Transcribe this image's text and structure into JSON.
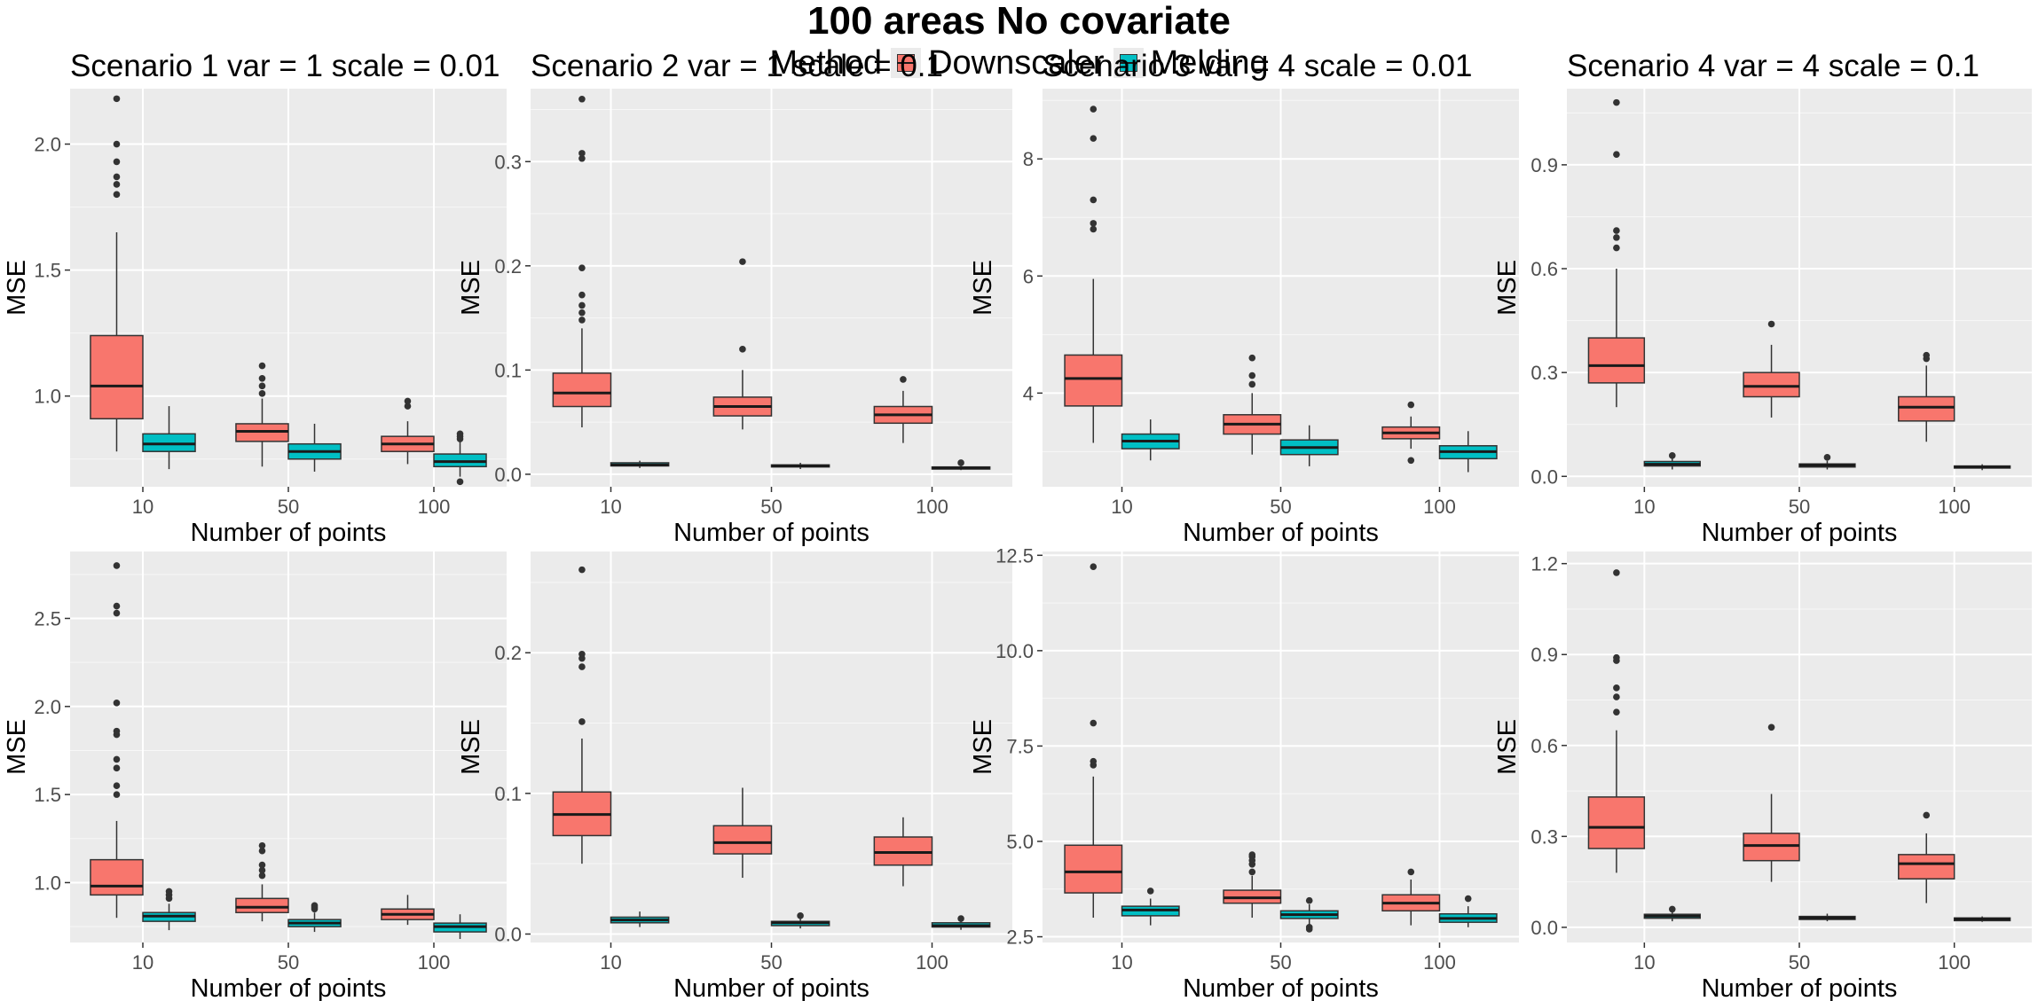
{
  "title": "100 areas No covariate",
  "legend": {
    "title": "Method",
    "items": [
      {
        "label": "Downscaler",
        "color": "#F8766D"
      },
      {
        "label": "Melding",
        "color": "#00BFC4"
      }
    ]
  },
  "chart_data": [
    {
      "type": "box",
      "title": "Scenario 1 var = 1 scale = 0.01",
      "xlabel": "Number of points",
      "ylabel": "MSE",
      "categories": [
        "10",
        "50",
        "100"
      ],
      "ylim": [
        0.64,
        2.22
      ],
      "yticks": [
        1.0,
        1.5,
        2.0
      ],
      "ytick_labels": [
        "1.0",
        "1.5",
        "2.0"
      ],
      "series": [
        {
          "name": "Downscaler",
          "boxes": [
            {
              "whisker_low": 0.78,
              "q1": 0.91,
              "median": 1.04,
              "q3": 1.24,
              "whisker_high": 1.65,
              "outliers": [
                1.8,
                1.84,
                1.87,
                1.93,
                2.0,
                2.18
              ]
            },
            {
              "whisker_low": 0.72,
              "q1": 0.82,
              "median": 0.86,
              "q3": 0.89,
              "whisker_high": 0.99,
              "outliers": [
                1.01,
                1.04,
                1.07,
                1.12
              ]
            },
            {
              "whisker_low": 0.73,
              "q1": 0.78,
              "median": 0.81,
              "q3": 0.84,
              "whisker_high": 0.9,
              "outliers": [
                0.96,
                0.98
              ]
            }
          ]
        },
        {
          "name": "Melding",
          "boxes": [
            {
              "whisker_low": 0.71,
              "q1": 0.78,
              "median": 0.81,
              "q3": 0.85,
              "whisker_high": 0.96,
              "outliers": []
            },
            {
              "whisker_low": 0.7,
              "q1": 0.75,
              "median": 0.78,
              "q3": 0.81,
              "whisker_high": 0.89,
              "outliers": []
            },
            {
              "whisker_low": 0.68,
              "q1": 0.72,
              "median": 0.74,
              "q3": 0.77,
              "whisker_high": 0.82,
              "outliers": [
                0.66,
                0.83,
                0.84,
                0.85
              ]
            }
          ]
        }
      ]
    },
    {
      "type": "box",
      "title": "Scenario 2 var = 1 scale = 0.1",
      "xlabel": "Number of points",
      "ylabel": "MSE",
      "categories": [
        "10",
        "50",
        "100"
      ],
      "ylim": [
        -0.012,
        0.37
      ],
      "yticks": [
        0.0,
        0.1,
        0.2,
        0.3
      ],
      "ytick_labels": [
        "0.0",
        "0.1",
        "0.2",
        "0.3"
      ],
      "series": [
        {
          "name": "Downscaler",
          "boxes": [
            {
              "whisker_low": 0.045,
              "q1": 0.065,
              "median": 0.078,
              "q3": 0.097,
              "whisker_high": 0.14,
              "outliers": [
                0.148,
                0.155,
                0.162,
                0.172,
                0.198,
                0.303,
                0.308,
                0.36
              ]
            },
            {
              "whisker_low": 0.043,
              "q1": 0.056,
              "median": 0.065,
              "q3": 0.074,
              "whisker_high": 0.1,
              "outliers": [
                0.12,
                0.204
              ]
            },
            {
              "whisker_low": 0.03,
              "q1": 0.049,
              "median": 0.057,
              "q3": 0.065,
              "whisker_high": 0.08,
              "outliers": [
                0.091
              ]
            }
          ]
        },
        {
          "name": "Melding",
          "boxes": [
            {
              "whisker_low": 0.006,
              "q1": 0.008,
              "median": 0.009,
              "q3": 0.011,
              "whisker_high": 0.013,
              "outliers": []
            },
            {
              "whisker_low": 0.005,
              "q1": 0.007,
              "median": 0.008,
              "q3": 0.009,
              "whisker_high": 0.011,
              "outliers": []
            },
            {
              "whisker_low": 0.004,
              "q1": 0.005,
              "median": 0.006,
              "q3": 0.007,
              "whisker_high": 0.009,
              "outliers": [
                0.011
              ]
            }
          ]
        }
      ]
    },
    {
      "type": "box",
      "title": "Scenario 3 var = 4 scale = 0.01",
      "xlabel": "Number of points",
      "ylabel": "MSE",
      "categories": [
        "10",
        "50",
        "100"
      ],
      "ylim": [
        2.4,
        9.2
      ],
      "yticks": [
        4,
        6,
        8
      ],
      "ytick_labels": [
        "4",
        "6",
        "8"
      ],
      "series": [
        {
          "name": "Downscaler",
          "boxes": [
            {
              "whisker_low": 3.15,
              "q1": 3.78,
              "median": 4.25,
              "q3": 4.65,
              "whisker_high": 5.95,
              "outliers": [
                6.8,
                6.9,
                7.3,
                8.35,
                8.85
              ]
            },
            {
              "whisker_low": 2.95,
              "q1": 3.3,
              "median": 3.47,
              "q3": 3.63,
              "whisker_high": 4.0,
              "outliers": [
                4.15,
                4.3,
                4.6
              ]
            },
            {
              "whisker_low": 3.05,
              "q1": 3.22,
              "median": 3.32,
              "q3": 3.42,
              "whisker_high": 3.6,
              "outliers": [
                2.85,
                3.8
              ]
            }
          ]
        },
        {
          "name": "Melding",
          "boxes": [
            {
              "whisker_low": 2.85,
              "q1": 3.05,
              "median": 3.18,
              "q3": 3.3,
              "whisker_high": 3.55,
              "outliers": []
            },
            {
              "whisker_low": 2.75,
              "q1": 2.95,
              "median": 3.07,
              "q3": 3.2,
              "whisker_high": 3.45,
              "outliers": []
            },
            {
              "whisker_low": 2.65,
              "q1": 2.88,
              "median": 3.0,
              "q3": 3.1,
              "whisker_high": 3.35,
              "outliers": []
            }
          ]
        }
      ]
    },
    {
      "type": "box",
      "title": "Scenario 4 var = 4 scale = 0.1",
      "xlabel": "Number of points",
      "ylabel": "MSE",
      "categories": [
        "10",
        "50",
        "100"
      ],
      "ylim": [
        -0.03,
        1.12
      ],
      "yticks": [
        0.0,
        0.3,
        0.6,
        0.9
      ],
      "ytick_labels": [
        "0.0",
        "0.3",
        "0.6",
        "0.9"
      ],
      "series": [
        {
          "name": "Downscaler",
          "boxes": [
            {
              "whisker_low": 0.2,
              "q1": 0.27,
              "median": 0.32,
              "q3": 0.4,
              "whisker_high": 0.6,
              "outliers": [
                0.66,
                0.69,
                0.71,
                0.93,
                1.08
              ]
            },
            {
              "whisker_low": 0.17,
              "q1": 0.23,
              "median": 0.26,
              "q3": 0.3,
              "whisker_high": 0.38,
              "outliers": [
                0.44
              ]
            },
            {
              "whisker_low": 0.1,
              "q1": 0.16,
              "median": 0.2,
              "q3": 0.23,
              "whisker_high": 0.32,
              "outliers": [
                0.34,
                0.35
              ]
            }
          ]
        },
        {
          "name": "Melding",
          "boxes": [
            {
              "whisker_low": 0.02,
              "q1": 0.03,
              "median": 0.035,
              "q3": 0.043,
              "whisker_high": 0.055,
              "outliers": [
                0.06
              ]
            },
            {
              "whisker_low": 0.02,
              "q1": 0.027,
              "median": 0.032,
              "q3": 0.036,
              "whisker_high": 0.045,
              "outliers": [
                0.055
              ]
            },
            {
              "whisker_low": 0.018,
              "q1": 0.024,
              "median": 0.027,
              "q3": 0.03,
              "whisker_high": 0.035,
              "outliers": []
            }
          ]
        }
      ]
    },
    {
      "type": "box",
      "title": "",
      "xlabel": "Number of points",
      "ylabel": "MSE",
      "categories": [
        "10",
        "50",
        "100"
      ],
      "ylim": [
        0.66,
        2.88
      ],
      "yticks": [
        1.0,
        1.5,
        2.0,
        2.5
      ],
      "ytick_labels": [
        "1.0",
        "1.5",
        "2.0",
        "2.5"
      ],
      "series": [
        {
          "name": "Downscaler",
          "boxes": [
            {
              "whisker_low": 0.8,
              "q1": 0.93,
              "median": 0.98,
              "q3": 1.13,
              "whisker_high": 1.35,
              "outliers": [
                1.5,
                1.55,
                1.65,
                1.7,
                1.84,
                1.86,
                2.02,
                2.53,
                2.57,
                2.8
              ]
            },
            {
              "whisker_low": 0.78,
              "q1": 0.83,
              "median": 0.86,
              "q3": 0.91,
              "whisker_high": 0.99,
              "outliers": [
                1.04,
                1.07,
                1.1,
                1.18,
                1.21
              ]
            },
            {
              "whisker_low": 0.76,
              "q1": 0.79,
              "median": 0.82,
              "q3": 0.85,
              "whisker_high": 0.93,
              "outliers": []
            }
          ]
        },
        {
          "name": "Melding",
          "boxes": [
            {
              "whisker_low": 0.73,
              "q1": 0.78,
              "median": 0.81,
              "q3": 0.83,
              "whisker_high": 0.88,
              "outliers": [
                0.91,
                0.93,
                0.95
              ]
            },
            {
              "whisker_low": 0.72,
              "q1": 0.75,
              "median": 0.77,
              "q3": 0.79,
              "whisker_high": 0.83,
              "outliers": [
                0.85,
                0.86,
                0.87
              ]
            },
            {
              "whisker_low": 0.68,
              "q1": 0.72,
              "median": 0.75,
              "q3": 0.77,
              "whisker_high": 0.82,
              "outliers": []
            }
          ]
        }
      ]
    },
    {
      "type": "box",
      "title": "",
      "xlabel": "Number of points",
      "ylabel": "MSE",
      "categories": [
        "10",
        "50",
        "100"
      ],
      "ylim": [
        -0.006,
        0.272
      ],
      "yticks": [
        0.0,
        0.1,
        0.2
      ],
      "ytick_labels": [
        "0.0",
        "0.1",
        "0.2"
      ],
      "series": [
        {
          "name": "Downscaler",
          "boxes": [
            {
              "whisker_low": 0.05,
              "q1": 0.07,
              "median": 0.085,
              "q3": 0.101,
              "whisker_high": 0.139,
              "outliers": [
                0.151,
                0.19,
                0.196,
                0.199,
                0.259
              ]
            },
            {
              "whisker_low": 0.04,
              "q1": 0.057,
              "median": 0.065,
              "q3": 0.077,
              "whisker_high": 0.104,
              "outliers": []
            },
            {
              "whisker_low": 0.034,
              "q1": 0.049,
              "median": 0.058,
              "q3": 0.069,
              "whisker_high": 0.083,
              "outliers": []
            }
          ]
        },
        {
          "name": "Melding",
          "boxes": [
            {
              "whisker_low": 0.005,
              "q1": 0.008,
              "median": 0.01,
              "q3": 0.012,
              "whisker_high": 0.016,
              "outliers": []
            },
            {
              "whisker_low": 0.004,
              "q1": 0.006,
              "median": 0.008,
              "q3": 0.009,
              "whisker_high": 0.011,
              "outliers": [
                0.013
              ]
            },
            {
              "whisker_low": 0.003,
              "q1": 0.005,
              "median": 0.006,
              "q3": 0.008,
              "whisker_high": 0.009,
              "outliers": [
                0.011
              ]
            }
          ]
        }
      ]
    },
    {
      "type": "box",
      "title": "",
      "xlabel": "Number of points",
      "ylabel": "MSE",
      "categories": [
        "10",
        "50",
        "100"
      ],
      "ylim": [
        2.35,
        12.6
      ],
      "yticks": [
        2.5,
        5.0,
        7.5,
        10.0,
        12.5
      ],
      "ytick_labels": [
        "2.5",
        "5.0",
        "7.5",
        "10.0",
        "12.5"
      ],
      "series": [
        {
          "name": "Downscaler",
          "boxes": [
            {
              "whisker_low": 3.0,
              "q1": 3.65,
              "median": 4.2,
              "q3": 4.9,
              "whisker_high": 6.7,
              "outliers": [
                7.0,
                7.1,
                8.1,
                12.2
              ]
            },
            {
              "whisker_low": 3.0,
              "q1": 3.38,
              "median": 3.52,
              "q3": 3.72,
              "whisker_high": 4.1,
              "outliers": [
                4.2,
                4.4,
                4.5,
                4.6,
                4.65
              ]
            },
            {
              "whisker_low": 2.8,
              "q1": 3.18,
              "median": 3.38,
              "q3": 3.6,
              "whisker_high": 4.0,
              "outliers": [
                4.2
              ]
            }
          ]
        },
        {
          "name": "Melding",
          "boxes": [
            {
              "whisker_low": 2.8,
              "q1": 3.05,
              "median": 3.2,
              "q3": 3.3,
              "whisker_high": 3.5,
              "outliers": [
                3.7
              ]
            },
            {
              "whisker_low": 2.8,
              "q1": 2.98,
              "median": 3.08,
              "q3": 3.18,
              "whisker_high": 3.35,
              "outliers": [
                2.7,
                2.75,
                3.45
              ]
            },
            {
              "whisker_low": 2.75,
              "q1": 2.88,
              "median": 2.98,
              "q3": 3.1,
              "whisker_high": 3.3,
              "outliers": [
                3.5
              ]
            }
          ]
        }
      ]
    },
    {
      "type": "box",
      "title": "",
      "xlabel": "Number of points",
      "ylabel": "MSE",
      "categories": [
        "10",
        "50",
        "100"
      ],
      "ylim": [
        -0.05,
        1.24
      ],
      "yticks": [
        0.0,
        0.3,
        0.6,
        0.9,
        1.2
      ],
      "ytick_labels": [
        "0.0",
        "0.3",
        "0.6",
        "0.9",
        "1.2"
      ],
      "series": [
        {
          "name": "Downscaler",
          "boxes": [
            {
              "whisker_low": 0.18,
              "q1": 0.26,
              "median": 0.33,
              "q3": 0.43,
              "whisker_high": 0.65,
              "outliers": [
                0.71,
                0.76,
                0.79,
                0.88,
                0.89,
                1.17
              ]
            },
            {
              "whisker_low": 0.15,
              "q1": 0.22,
              "median": 0.27,
              "q3": 0.31,
              "whisker_high": 0.44,
              "outliers": [
                0.66
              ]
            },
            {
              "whisker_low": 0.08,
              "q1": 0.16,
              "median": 0.21,
              "q3": 0.24,
              "whisker_high": 0.31,
              "outliers": [
                0.37
              ]
            }
          ]
        },
        {
          "name": "Melding",
          "boxes": [
            {
              "whisker_low": 0.02,
              "q1": 0.03,
              "median": 0.037,
              "q3": 0.043,
              "whisker_high": 0.052,
              "outliers": [
                0.06
              ]
            },
            {
              "whisker_low": 0.02,
              "q1": 0.026,
              "median": 0.031,
              "q3": 0.036,
              "whisker_high": 0.045,
              "outliers": []
            },
            {
              "whisker_low": 0.018,
              "q1": 0.022,
              "median": 0.027,
              "q3": 0.031,
              "whisker_high": 0.036,
              "outliers": []
            }
          ]
        }
      ]
    }
  ]
}
